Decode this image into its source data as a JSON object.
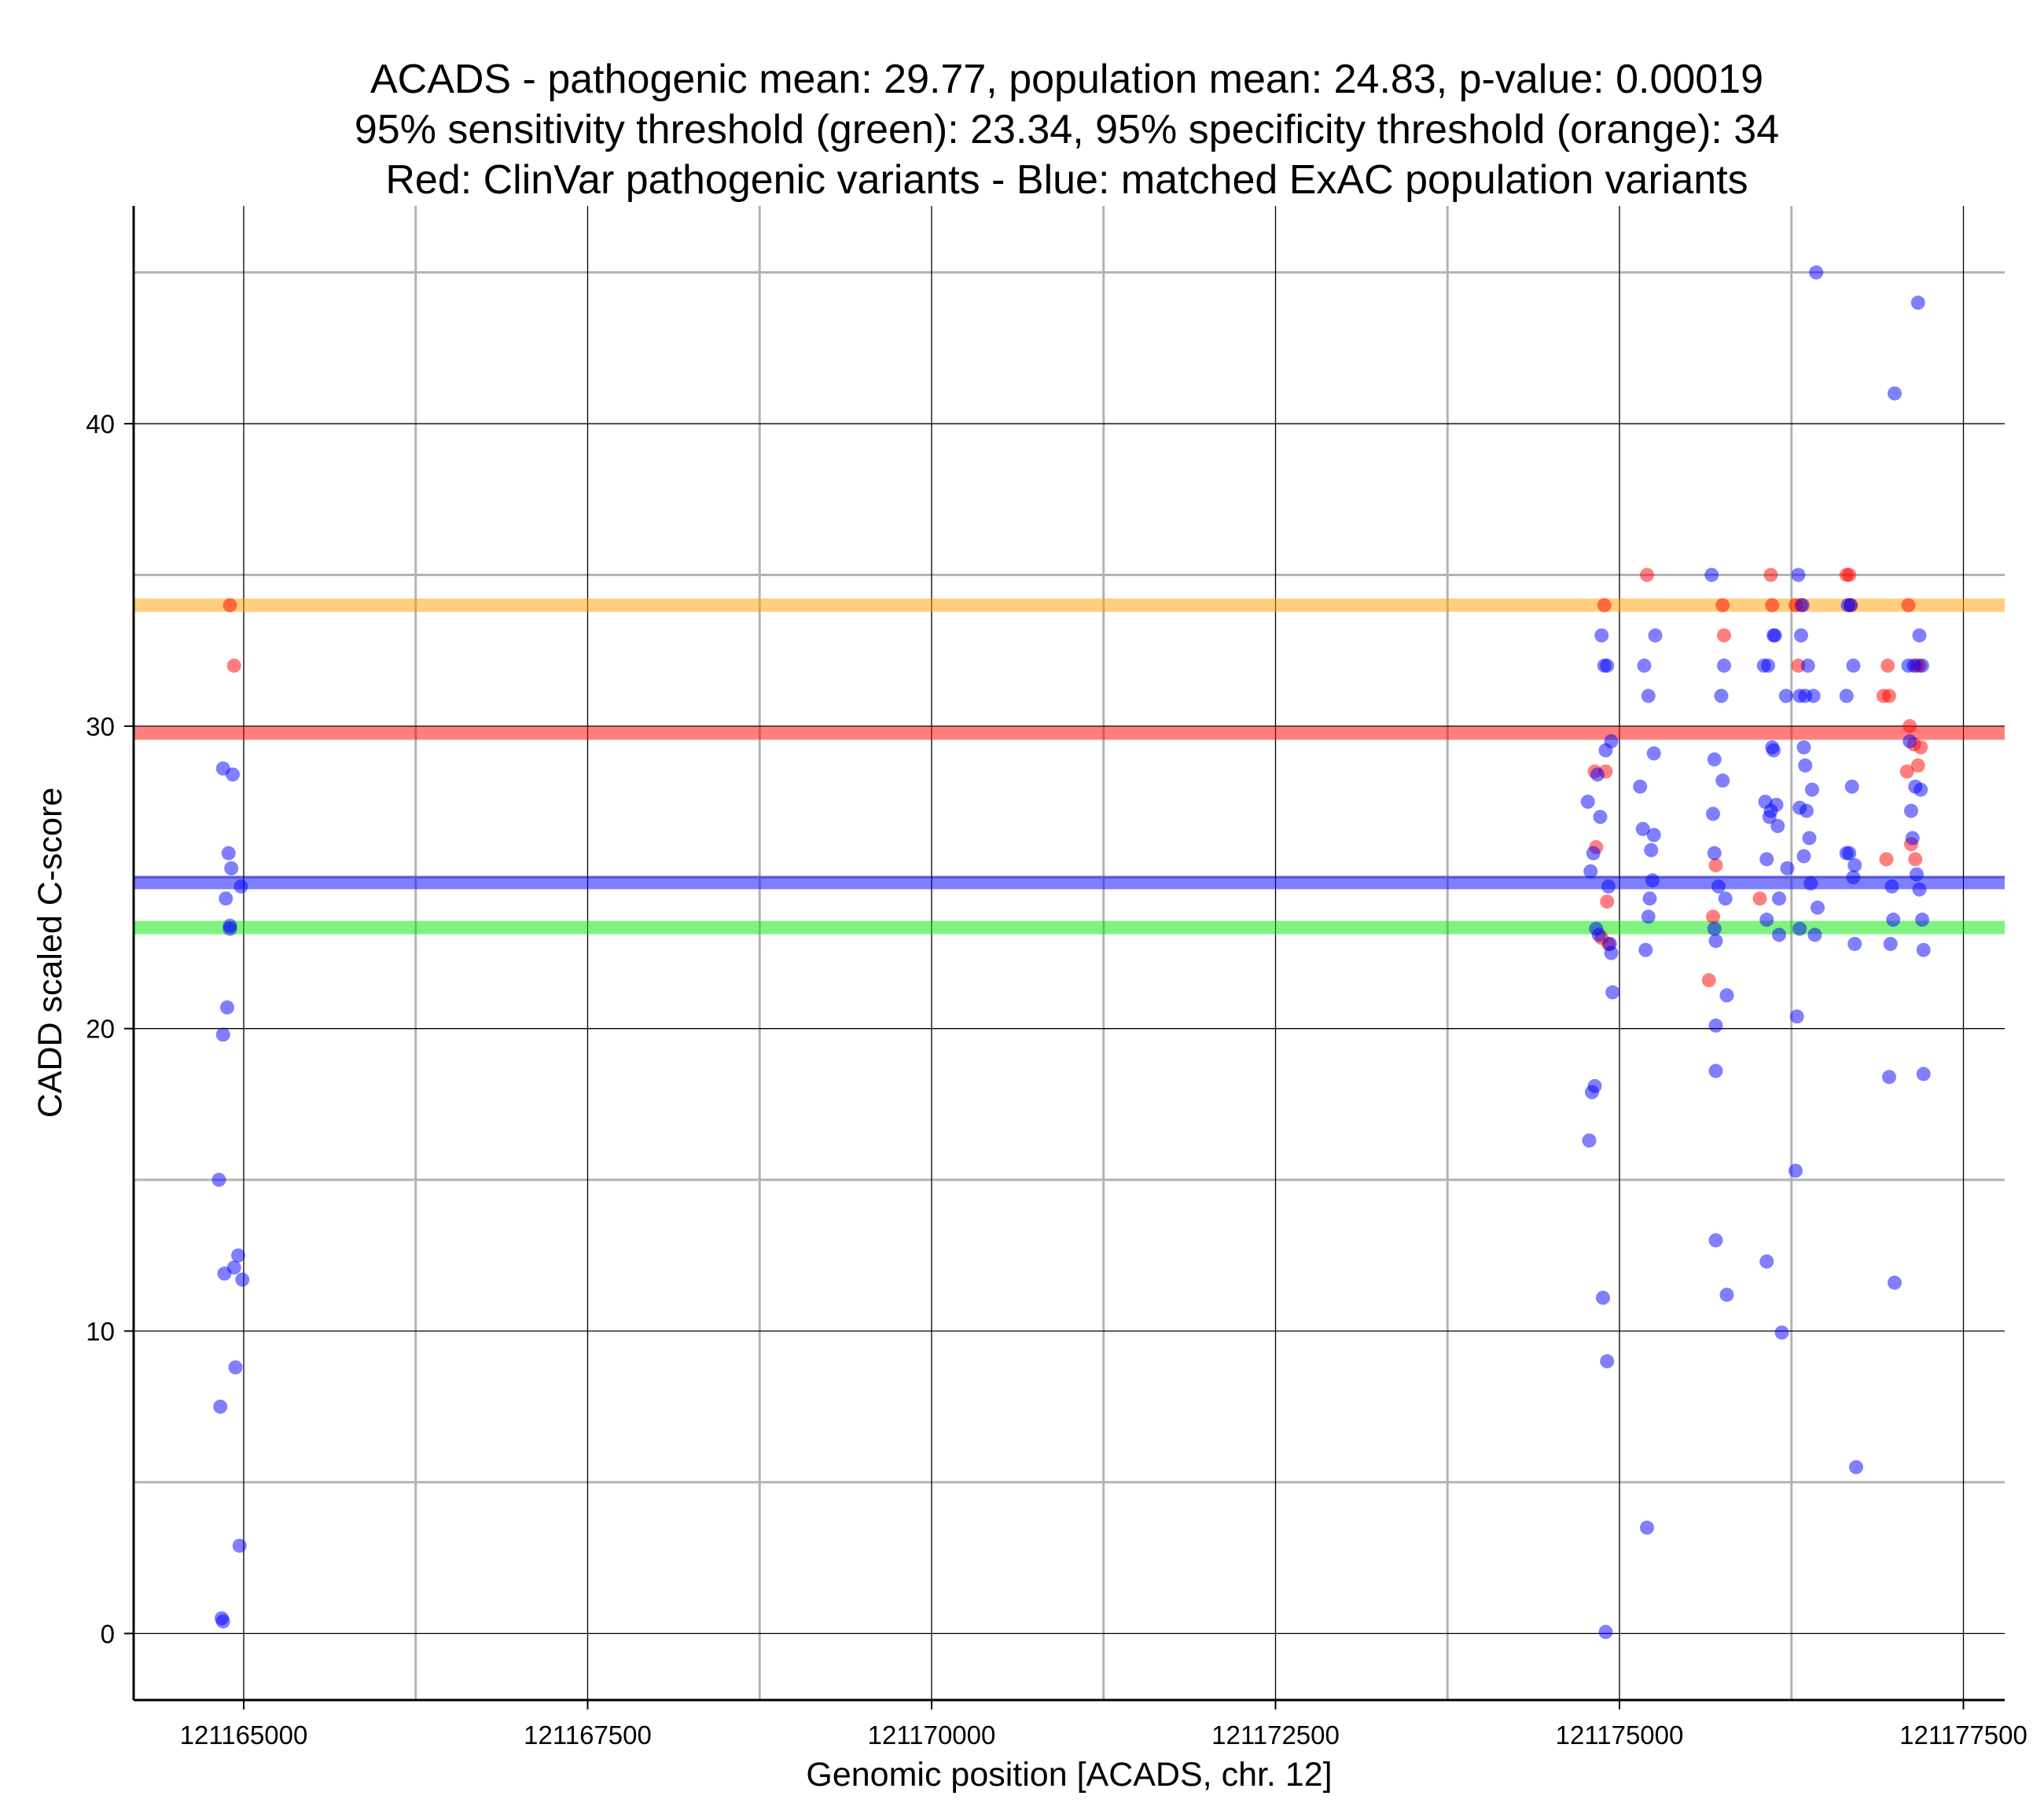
{
  "chart_data": {
    "type": "scatter",
    "title": [
      "ACADS - pathogenic mean: 29.77, population mean: 24.83, p-value: 0.00019",
      "95% sensitivity threshold (green): 23.34, 95% specificity threshold (orange): 34",
      "Red: ClinVar pathogenic variants - Blue: matched ExAC population variants"
    ],
    "xlabel": "Genomic position [ACADS, chr. 12]",
    "ylabel": "CADD scaled C-score",
    "xlim": [
      121164200,
      121177800
    ],
    "ylim": [
      -2.2,
      47.2
    ],
    "x_ticks": [
      121165000,
      121167500,
      121170000,
      121172500,
      121175000,
      121177500
    ],
    "y_ticks": [
      0,
      10,
      20,
      30,
      40
    ],
    "grid": true,
    "colors": {
      "pathogenic": "#ff0000",
      "population": "#0000ff",
      "sensitivity": "#00e600",
      "specificity": "#ffa000",
      "major_grid": "#000000",
      "minor_grid": "#b3b3b3"
    },
    "reference_lines": [
      {
        "name": "specificity threshold",
        "y": 34,
        "color": "#ffa000"
      },
      {
        "name": "pathogenic mean",
        "y": 29.77,
        "color": "#ff0000"
      },
      {
        "name": "population mean",
        "y": 24.83,
        "color": "#0000ff"
      },
      {
        "name": "sensitivity threshold",
        "y": 23.34,
        "color": "#00e600"
      }
    ],
    "series": [
      {
        "name": "ClinVar pathogenic variants",
        "color": "#ff0000",
        "points": [
          [
            121164900,
            34
          ],
          [
            121164930,
            32
          ],
          [
            121174820,
            28.5
          ],
          [
            121174830,
            26
          ],
          [
            121174870,
            23
          ],
          [
            121174890,
            34
          ],
          [
            121174900,
            28.5
          ],
          [
            121174910,
            24.2
          ],
          [
            121174920,
            22.8
          ],
          [
            121175200,
            35
          ],
          [
            121175680,
            23.7
          ],
          [
            121175700,
            25.4
          ],
          [
            121175750,
            34
          ],
          [
            121175760,
            33
          ],
          [
            121175650,
            21.6
          ],
          [
            121176020,
            24.3
          ],
          [
            121176100,
            35
          ],
          [
            121176110,
            34
          ],
          [
            121176280,
            34
          ],
          [
            121176300,
            32
          ],
          [
            121176320,
            34
          ],
          [
            121176650,
            35
          ],
          [
            121176670,
            35
          ],
          [
            121176680,
            34
          ],
          [
            121176920,
            31
          ],
          [
            121176950,
            32
          ],
          [
            121176940,
            25.6
          ],
          [
            121176960,
            31
          ],
          [
            121177100,
            34
          ],
          [
            121177090,
            28.5
          ],
          [
            121177110,
            30
          ],
          [
            121177120,
            26.1
          ],
          [
            121177140,
            29.4
          ],
          [
            121177150,
            25.6
          ],
          [
            121177160,
            32
          ],
          [
            121177170,
            28.7
          ],
          [
            121177180,
            32
          ],
          [
            121177190,
            29.3
          ]
        ]
      },
      {
        "name": "matched ExAC population variants",
        "color": "#0000ff",
        "points": [
          [
            121164820,
            15
          ],
          [
            121164830,
            7.5
          ],
          [
            121164840,
            0.5
          ],
          [
            121164850,
            0.4
          ],
          [
            121164850,
            28.6
          ],
          [
            121164850,
            19.8
          ],
          [
            121164860,
            11.9
          ],
          [
            121164870,
            24.3
          ],
          [
            121164880,
            20.7
          ],
          [
            121164890,
            25.8
          ],
          [
            121164900,
            23.4
          ],
          [
            121164900,
            23.3
          ],
          [
            121164910,
            25.3
          ],
          [
            121164920,
            28.4
          ],
          [
            121164930,
            12.1
          ],
          [
            121164940,
            8.8
          ],
          [
            121164960,
            12.5
          ],
          [
            121164970,
            2.9
          ],
          [
            121164980,
            24.7
          ],
          [
            121164990,
            11.7
          ],
          [
            121174770,
            27.5
          ],
          [
            121174780,
            16.3
          ],
          [
            121174790,
            25.2
          ],
          [
            121174800,
            17.9
          ],
          [
            121174810,
            25.8
          ],
          [
            121174820,
            18.1
          ],
          [
            121174830,
            23.3
          ],
          [
            121174840,
            28.4
          ],
          [
            121174850,
            23.1
          ],
          [
            121174860,
            27
          ],
          [
            121174870,
            33
          ],
          [
            121174880,
            11.1
          ],
          [
            121174890,
            32
          ],
          [
            121174900,
            29.2
          ],
          [
            121174900,
            0.05
          ],
          [
            121174910,
            9
          ],
          [
            121174910,
            32
          ],
          [
            121174920,
            24.7
          ],
          [
            121174930,
            22.8
          ],
          [
            121174940,
            22.5
          ],
          [
            121174940,
            29.5
          ],
          [
            121174950,
            21.2
          ],
          [
            121175150,
            28
          ],
          [
            121175170,
            26.6
          ],
          [
            121175180,
            32
          ],
          [
            121175190,
            22.6
          ],
          [
            121175200,
            3.5
          ],
          [
            121175210,
            23.7
          ],
          [
            121175210,
            31
          ],
          [
            121175220,
            24.3
          ],
          [
            121175230,
            25.9
          ],
          [
            121175240,
            24.9
          ],
          [
            121175250,
            29.1
          ],
          [
            121175250,
            26.4
          ],
          [
            121175260,
            33
          ],
          [
            121175670,
            35
          ],
          [
            121175680,
            27.1
          ],
          [
            121175690,
            28.9
          ],
          [
            121175690,
            25.8
          ],
          [
            121175690,
            23.3
          ],
          [
            121175700,
            22.9
          ],
          [
            121175700,
            20.1
          ],
          [
            121175700,
            18.6
          ],
          [
            121175700,
            13
          ],
          [
            121175720,
            24.7
          ],
          [
            121175740,
            31
          ],
          [
            121175750,
            28.2
          ],
          [
            121175760,
            32
          ],
          [
            121175770,
            24.3
          ],
          [
            121175780,
            21.1
          ],
          [
            121175780,
            11.2
          ],
          [
            121176050,
            32
          ],
          [
            121176060,
            27.5
          ],
          [
            121176070,
            25.6
          ],
          [
            121176070,
            23.6
          ],
          [
            121176070,
            12.3
          ],
          [
            121176080,
            32
          ],
          [
            121176090,
            27
          ],
          [
            121176100,
            27.2
          ],
          [
            121176110,
            29.3
          ],
          [
            121176120,
            33
          ],
          [
            121176120,
            29.2
          ],
          [
            121176130,
            33
          ],
          [
            121176140,
            27.4
          ],
          [
            121176150,
            26.7
          ],
          [
            121176160,
            24.3
          ],
          [
            121176160,
            23.1
          ],
          [
            121176180,
            9.95
          ],
          [
            121176210,
            31
          ],
          [
            121176220,
            25.3
          ],
          [
            121176280,
            15.3
          ],
          [
            121176290,
            20.4
          ],
          [
            121176300,
            35
          ],
          [
            121176310,
            31
          ],
          [
            121176310,
            27.3
          ],
          [
            121176310,
            23.3
          ],
          [
            121176320,
            33
          ],
          [
            121176330,
            34
          ],
          [
            121176340,
            29.3
          ],
          [
            121176340,
            25.7
          ],
          [
            121176350,
            31
          ],
          [
            121176350,
            28.7
          ],
          [
            121176360,
            27.2
          ],
          [
            121176370,
            32
          ],
          [
            121176380,
            26.3
          ],
          [
            121176390,
            24.8
          ],
          [
            121176400,
            27.9
          ],
          [
            121176410,
            31
          ],
          [
            121176420,
            23.1
          ],
          [
            121176430,
            45
          ],
          [
            121176440,
            24
          ],
          [
            121176650,
            31
          ],
          [
            121176650,
            25.8
          ],
          [
            121176660,
            34
          ],
          [
            121176670,
            25.8
          ],
          [
            121176680,
            34
          ],
          [
            121176690,
            28
          ],
          [
            121176700,
            32
          ],
          [
            121176700,
            25
          ],
          [
            121176710,
            25.4
          ],
          [
            121176710,
            22.8
          ],
          [
            121176720,
            5.5
          ],
          [
            121176960,
            18.4
          ],
          [
            121176970,
            22.8
          ],
          [
            121176980,
            24.7
          ],
          [
            121176990,
            23.6
          ],
          [
            121177000,
            41
          ],
          [
            121177000,
            11.6
          ],
          [
            121177100,
            32
          ],
          [
            121177110,
            29.5
          ],
          [
            121177120,
            27.2
          ],
          [
            121177130,
            26.3
          ],
          [
            121177140,
            32
          ],
          [
            121177150,
            28
          ],
          [
            121177160,
            25.1
          ],
          [
            121177170,
            44
          ],
          [
            121177180,
            24.6
          ],
          [
            121177180,
            33
          ],
          [
            121177190,
            27.9
          ],
          [
            121177200,
            32
          ],
          [
            121177200,
            23.6
          ],
          [
            121177210,
            22.6
          ],
          [
            121177210,
            18.5
          ]
        ]
      }
    ]
  }
}
